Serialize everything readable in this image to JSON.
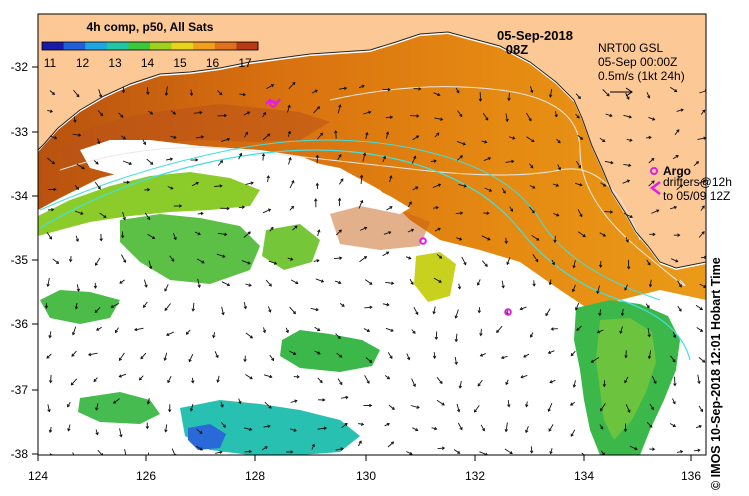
{
  "colorbar": {
    "caption": "4h comp, p50, All Sats",
    "ticks": [
      "11",
      "12",
      "13",
      "14",
      "15",
      "16",
      "17"
    ],
    "colors": [
      "#1a1aa8",
      "#1f5fd8",
      "#1fa6e0",
      "#20c6a8",
      "#3cc83c",
      "#9ed21e",
      "#e8d21a",
      "#f0a01a",
      "#e0701a",
      "#b83a14"
    ]
  },
  "timestamp": {
    "date": "05-Sep-2018",
    "time": "08Z"
  },
  "currents": {
    "line1": "NRT00 GSL",
    "line2": "05-Sep 00:00Z",
    "scale": "0.5m/s (1kt 24h)"
  },
  "legend": {
    "argo_label": "Argo",
    "drifters_line1": "drifters@12h",
    "drifters_line2": "to 05/09 12Z"
  },
  "credit": "© IMOS 10-Sep-2018 12:01 Hobart Time",
  "axes": {
    "x_ticks": [
      "124",
      "126",
      "128",
      "130",
      "132",
      "134",
      "136"
    ],
    "y_ticks": [
      "-32",
      "-33",
      "-34",
      "-35",
      "-36",
      "-37",
      "-38"
    ]
  },
  "colors": {
    "land": "#fcc896",
    "marker": "#e020e0"
  }
}
